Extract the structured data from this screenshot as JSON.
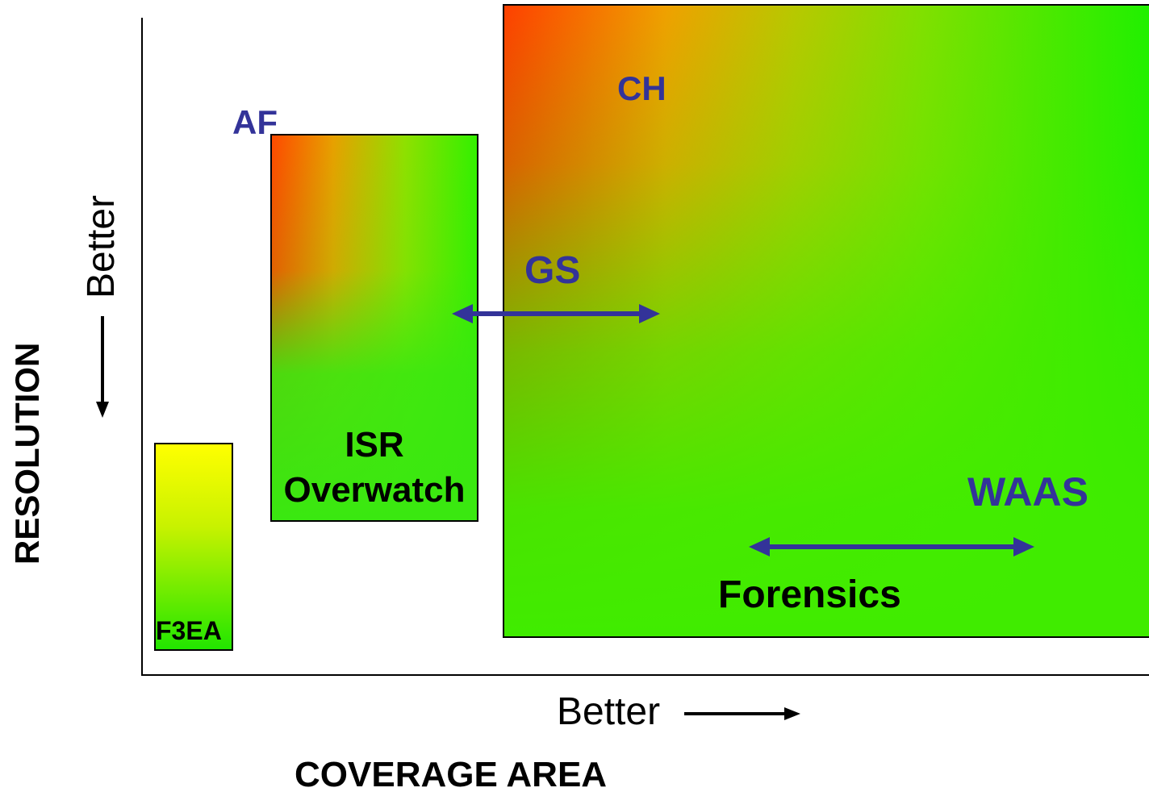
{
  "axes": {
    "y_title": "RESOLUTION",
    "y_better": "Better",
    "x_title": "COVERAGE AREA",
    "x_better": "Better"
  },
  "boxes": {
    "f3ea": "F3EA",
    "isr_line1": "ISR",
    "isr_line2": "Overwatch"
  },
  "labels": {
    "af": "AF",
    "ch": "CH",
    "gs": "GS",
    "waas": "WAAS",
    "forensics": "Forensics"
  },
  "colors": {
    "label_blue": "#333399",
    "arrow_blue": "#333399",
    "axis": "#000000"
  }
}
